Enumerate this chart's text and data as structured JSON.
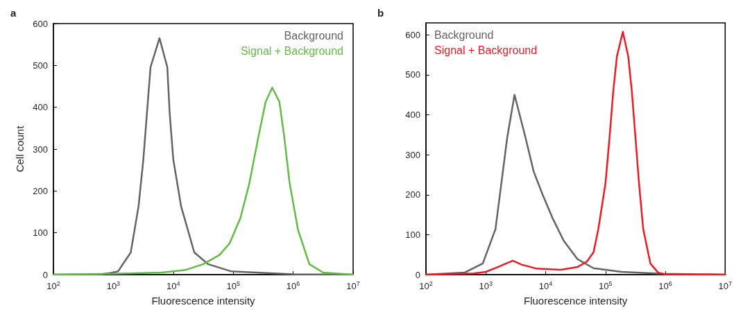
{
  "chart_data": [
    {
      "type": "line",
      "title": "a",
      "xlabel": "Fluorescence intensity",
      "ylabel": "Cell count",
      "log": "x",
      "legend": "top right",
      "xlim": [
        100,
        10000000
      ],
      "xticks": [
        {
          "value": 100,
          "label": "10$^{2}$"
        },
        {
          "value": 1000,
          "label": "10$^{3}$"
        },
        {
          "value": 10000,
          "label": "10$^{4}$"
        },
        {
          "value": 100000,
          "label": "10$^{5}$"
        },
        {
          "value": 1000000,
          "label": "10$^{6}$"
        },
        {
          "value": 10000000,
          "label": "10$^{7}$"
        }
      ],
      "ylim": [
        0,
        600
      ],
      "yticks": [
        0,
        100,
        200,
        300,
        400,
        500,
        600
      ],
      "series": [
        {
          "name": "Background",
          "color": "#636363",
          "x": [
            100,
            630,
            1000,
            1200,
            1950,
            2630,
            3160,
            3630,
            4170,
            5890,
            7940,
            8710,
            10000,
            13500,
            22400,
            38000,
            91200,
            1000000,
            10000000
          ],
          "values": [
            0,
            1,
            5,
            8,
            53,
            163,
            274,
            385,
            496,
            565,
            496,
            385,
            275,
            163,
            53,
            25,
            8,
            1,
            0
          ]
        },
        {
          "name": "Signal + Background",
          "color": "#62bb46",
          "x": [
            100,
            1000,
            6310,
            15800,
            31600,
            58900,
            87100,
            132000,
            186000,
            263000,
            347000,
            447000,
            589000,
            708000,
            871000,
            1200000,
            1860000,
            3160000,
            10000000
          ],
          "values": [
            0,
            2,
            5,
            11,
            25,
            47,
            75,
            136,
            219,
            330,
            413,
            447,
            413,
            330,
            219,
            108,
            25,
            5,
            0
          ]
        }
      ]
    },
    {
      "type": "line",
      "title": "b",
      "xlabel": "Fluorescence intensity",
      "log": "x",
      "legend": "top left",
      "xlim": [
        100,
        10000000
      ],
      "xticks": [
        {
          "value": 100,
          "label": "10$^{2}$"
        },
        {
          "value": 1000,
          "label": "10$^{3}$"
        },
        {
          "value": 10000,
          "label": "10$^{4}$"
        },
        {
          "value": 100000,
          "label": "10$^{5}$"
        },
        {
          "value": 1000000,
          "label": "10$^{6}$"
        },
        {
          "value": 10000000,
          "label": "10$^{7}$"
        }
      ],
      "ylim": [
        0,
        630
      ],
      "yticks": [
        0,
        100,
        200,
        300,
        400,
        500,
        600
      ],
      "series": [
        {
          "name": "Background",
          "color": "#636363",
          "x": [
            100,
            440,
            891,
            1450,
            1820,
            2290,
            3020,
            4570,
            6310,
            8910,
            12900,
            20000,
            33900,
            63100,
            186000,
            912000,
            10000000
          ],
          "values": [
            0,
            5,
            28,
            114,
            229,
            345,
            450,
            345,
            258,
            200,
            143,
            85,
            39,
            16,
            7,
            2,
            0
          ]
        },
        {
          "name": "Signal + Background",
          "color": "#ed1c24",
          "x": [
            100,
            630,
            1000,
            1580,
            2820,
            3980,
            7080,
            17800,
            33900,
            49000,
            63100,
            75900,
            100000,
            117000,
            135000,
            155000,
            195000,
            240000,
            275000,
            316000,
            363000,
            427000,
            562000,
            759000,
            1000000,
            10000000
          ],
          "values": [
            0,
            3,
            7,
            19,
            35,
            25,
            15,
            12,
            19,
            33,
            56,
            114,
            229,
            345,
            460,
            546,
            608,
            546,
            460,
            345,
            229,
            114,
            28,
            5,
            1,
            0
          ]
        }
      ]
    }
  ]
}
